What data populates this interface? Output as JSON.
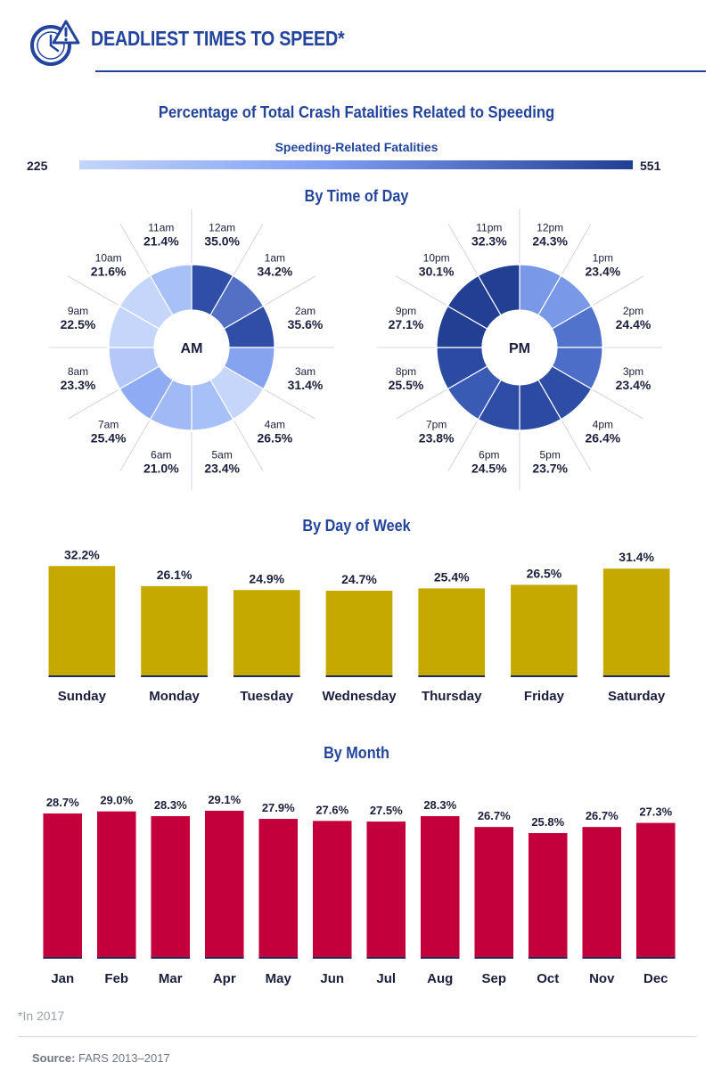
{
  "header": {
    "title": "DEADLIEST TIMES TO SPEED*",
    "icon": "clock-alert-icon"
  },
  "subtitle": "Percentage of Total Crash Fatalities Related to Speeding",
  "legend": {
    "title": "Speeding-Related Fatalities",
    "min": "225",
    "max": "551",
    "colors": [
      "#c2d5fa",
      "#7f9ef2",
      "#203f93"
    ]
  },
  "chart_data": [
    {
      "type": "pie",
      "title": "By Time of Day",
      "center_label": "AM",
      "categories": [
        "12am",
        "1am",
        "2am",
        "3am",
        "4am",
        "5am",
        "6am",
        "7am",
        "8am",
        "9am",
        "10am",
        "11am"
      ],
      "values": [
        35.0,
        34.2,
        35.6,
        31.4,
        26.5,
        23.4,
        21.0,
        25.4,
        23.3,
        22.5,
        21.6,
        21.4
      ],
      "value_labels": [
        "35.0%",
        "34.2%",
        "35.6%",
        "31.4%",
        "26.5%",
        "23.4%",
        "21.0%",
        "25.4%",
        "23.3%",
        "22.5%",
        "21.6%",
        "21.4%"
      ],
      "fill_colors": [
        "#2f4fa6",
        "#5470c4",
        "#2f4fa6",
        "#86a3ef",
        "#c6d6fb",
        "#a8c0f8",
        "#a1baf6",
        "#8fabf2",
        "#b3c8f8",
        "#c6d6fb",
        "#c6d6fb",
        "#a8c0f8"
      ]
    },
    {
      "type": "pie",
      "title": "By Time of Day",
      "center_label": "PM",
      "categories": [
        "12pm",
        "1pm",
        "2pm",
        "3pm",
        "4pm",
        "5pm",
        "6pm",
        "7pm",
        "8pm",
        "9pm",
        "10pm",
        "11pm"
      ],
      "values": [
        24.3,
        23.4,
        24.4,
        23.4,
        26.4,
        23.7,
        24.5,
        23.8,
        25.5,
        27.1,
        30.1,
        32.3
      ],
      "value_labels": [
        "24.3%",
        "23.4%",
        "24.4%",
        "23.4%",
        "26.4%",
        "23.7%",
        "24.5%",
        "23.8%",
        "25.5%",
        "27.1%",
        "30.1%",
        "32.3%"
      ],
      "fill_colors": [
        "#7898e8",
        "#7898e8",
        "#5273cc",
        "#4d6ec8",
        "#2e4ea6",
        "#2b4ba2",
        "#2e4ea6",
        "#3a5bb4",
        "#2b4ba2",
        "#223f93",
        "#223f93",
        "#223f93"
      ]
    },
    {
      "type": "bar",
      "title": "By Day of Week",
      "categories": [
        "Sunday",
        "Monday",
        "Tuesday",
        "Wednesday",
        "Thursday",
        "Friday",
        "Saturday"
      ],
      "values": [
        32.2,
        26.1,
        24.9,
        24.7,
        25.4,
        26.5,
        31.4
      ],
      "value_labels": [
        "32.2%",
        "26.1%",
        "24.9%",
        "24.7%",
        "25.4%",
        "26.5%",
        "31.4%"
      ],
      "color": "#c5a900"
    },
    {
      "type": "bar",
      "title": "By Month",
      "categories": [
        "Jan",
        "Feb",
        "Mar",
        "Apr",
        "May",
        "Jun",
        "Jul",
        "Aug",
        "Sep",
        "Oct",
        "Nov",
        "Dec"
      ],
      "values": [
        28.7,
        29.0,
        28.3,
        29.1,
        27.9,
        27.6,
        27.5,
        28.3,
        26.7,
        25.8,
        26.7,
        27.3
      ],
      "value_labels": [
        "28.7%",
        "29.0%",
        "28.3%",
        "29.1%",
        "27.9%",
        "27.6%",
        "27.5%",
        "28.3%",
        "26.7%",
        "25.8%",
        "26.7%",
        "27.3%"
      ],
      "color": "#c4003c"
    }
  ],
  "footnote": "*In 2017",
  "source": {
    "label": "Source:",
    "text": " FARS 2013–2017"
  }
}
